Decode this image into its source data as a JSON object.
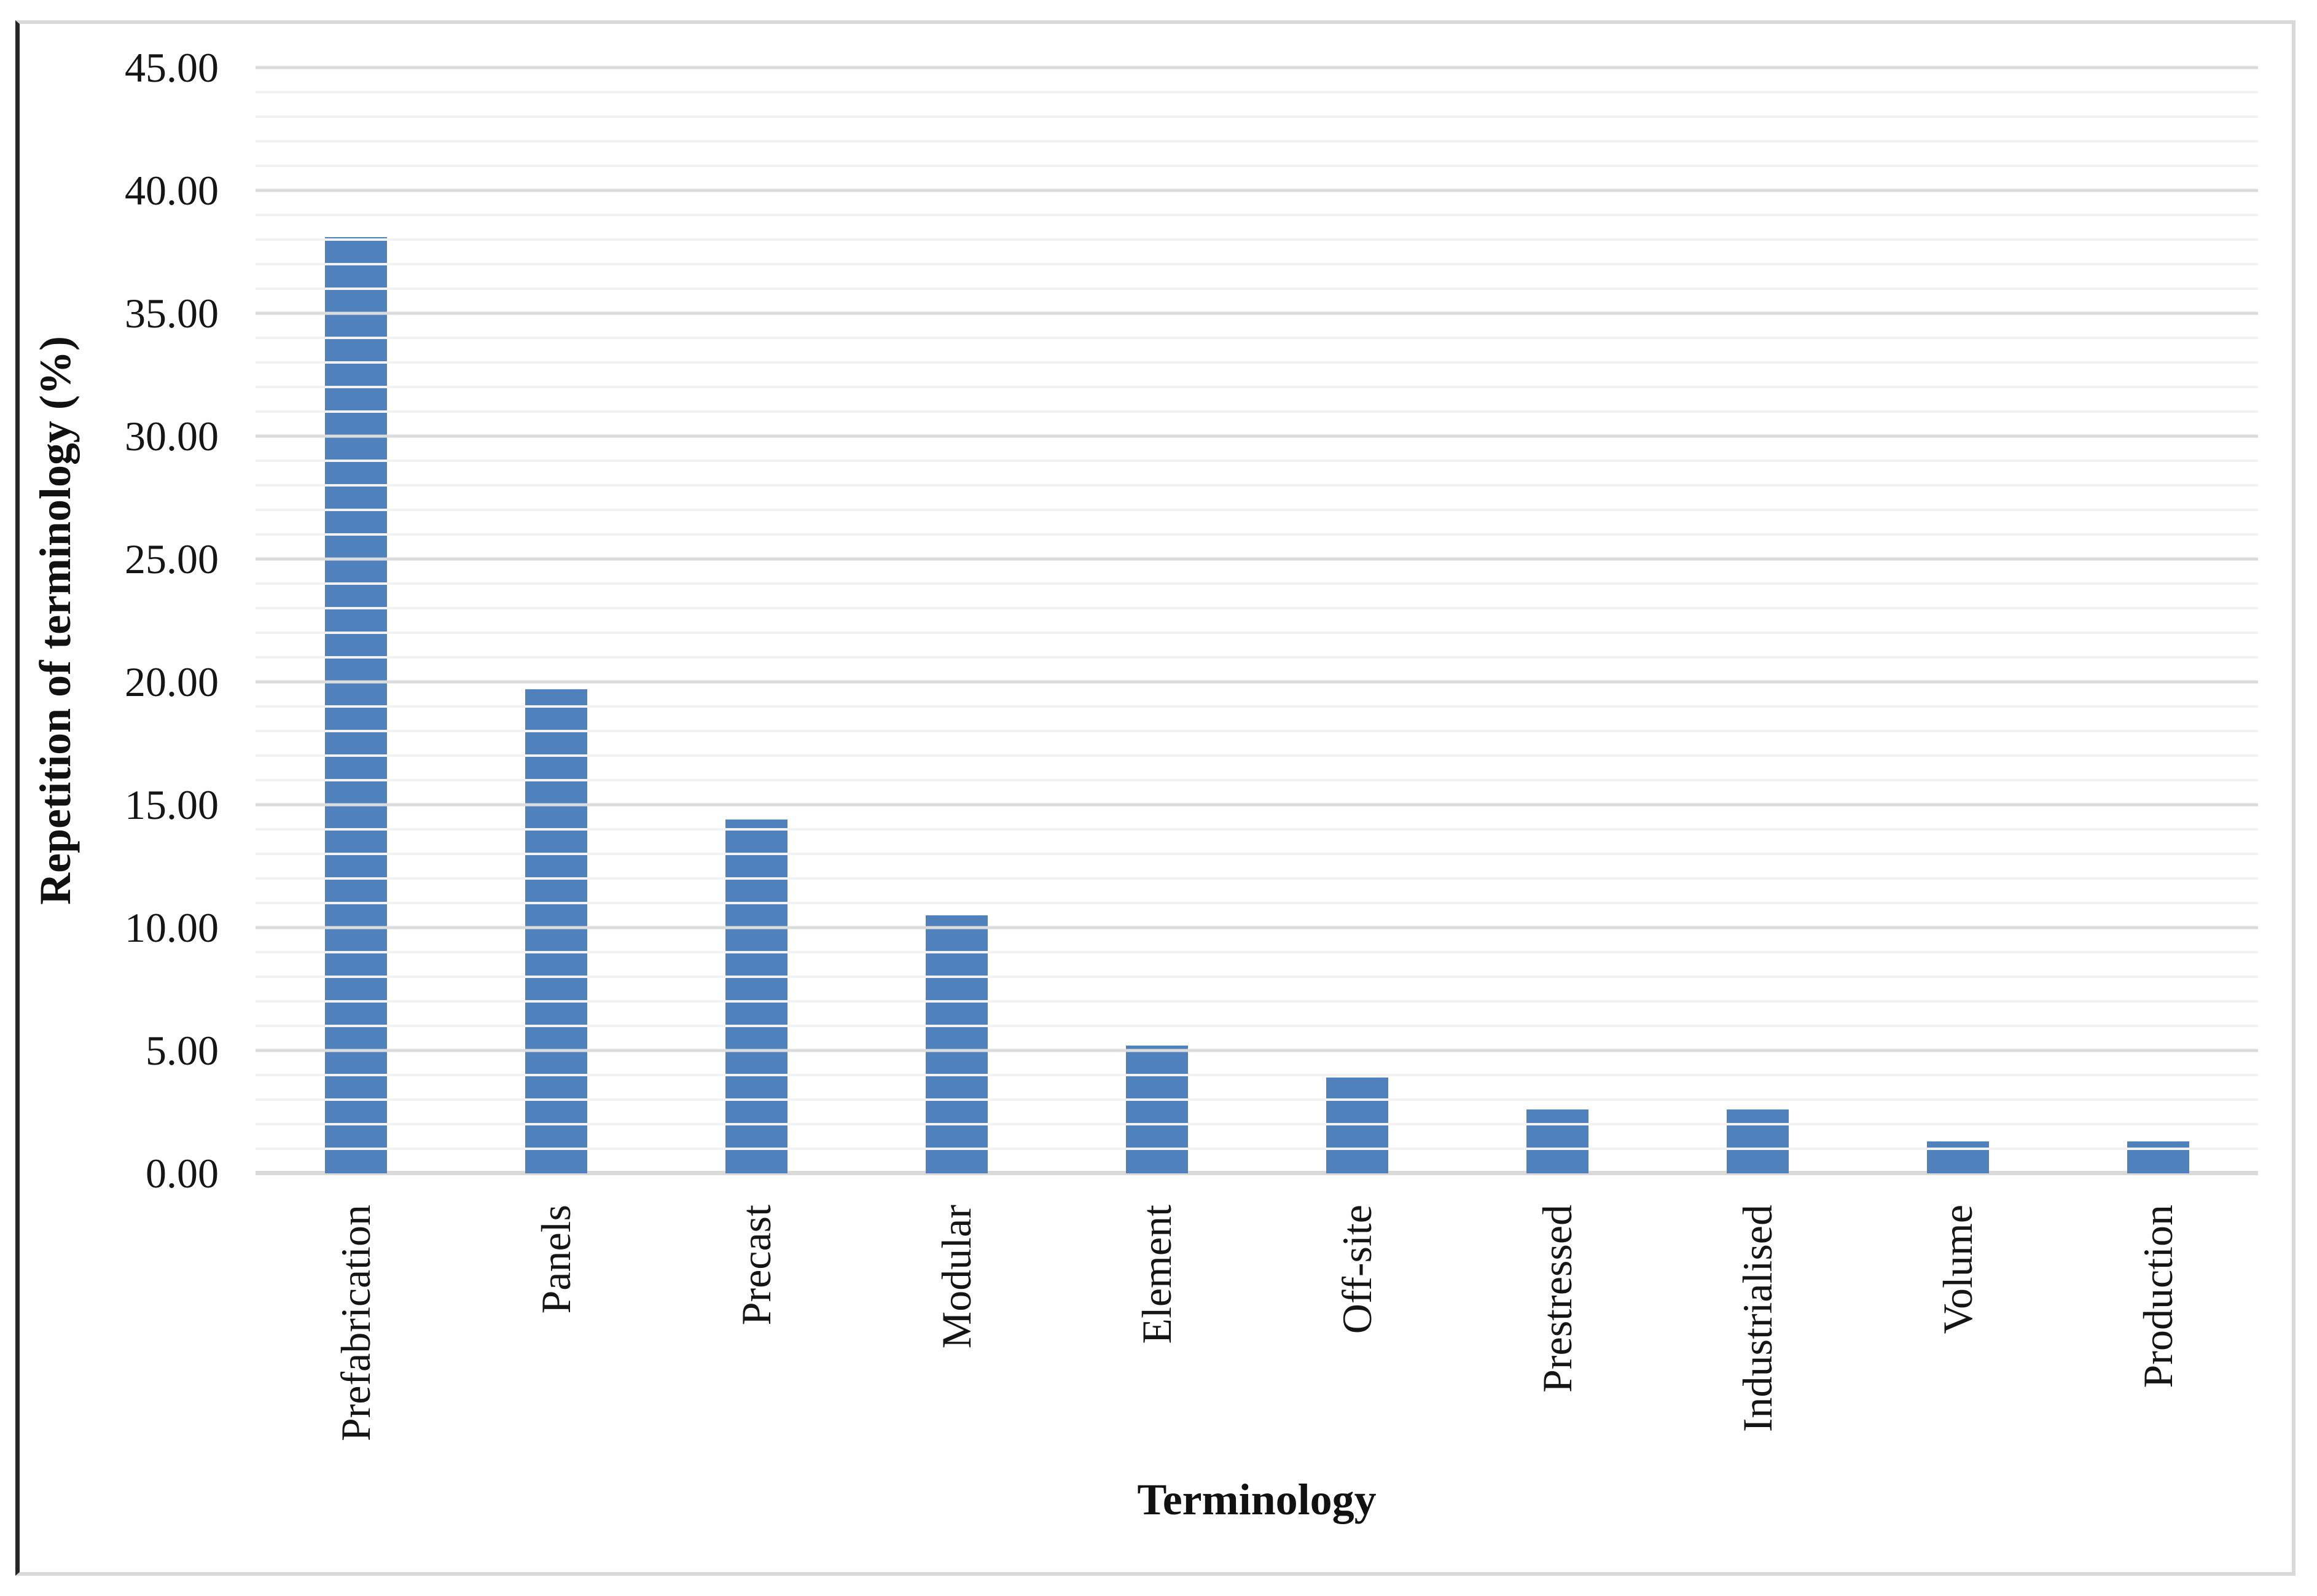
{
  "chart_data": {
    "type": "bar",
    "title": "",
    "categories": [
      "Prefabrication",
      "Panels",
      "Precast",
      "Modular",
      "Element",
      "Off-site",
      "Prestressed",
      "Industrialised",
      "Volume",
      "Production"
    ],
    "values": [
      38.1,
      19.7,
      14.4,
      10.5,
      5.2,
      3.9,
      2.6,
      2.6,
      1.3,
      1.3
    ],
    "xlabel": "Terminology",
    "ylabel": "Repetition of terminology (%)",
    "ylim": [
      0,
      45
    ],
    "y_major_step": 5,
    "y_minor_step": 1,
    "y_tick_labels": [
      "0.00",
      "5.00",
      "10.00",
      "15.00",
      "20.00",
      "25.00",
      "30.00",
      "35.00",
      "40.00",
      "45.00"
    ],
    "grid": "minor-and-major-horizontal",
    "legend_position": "none",
    "bar_color": "#4F81BD"
  }
}
